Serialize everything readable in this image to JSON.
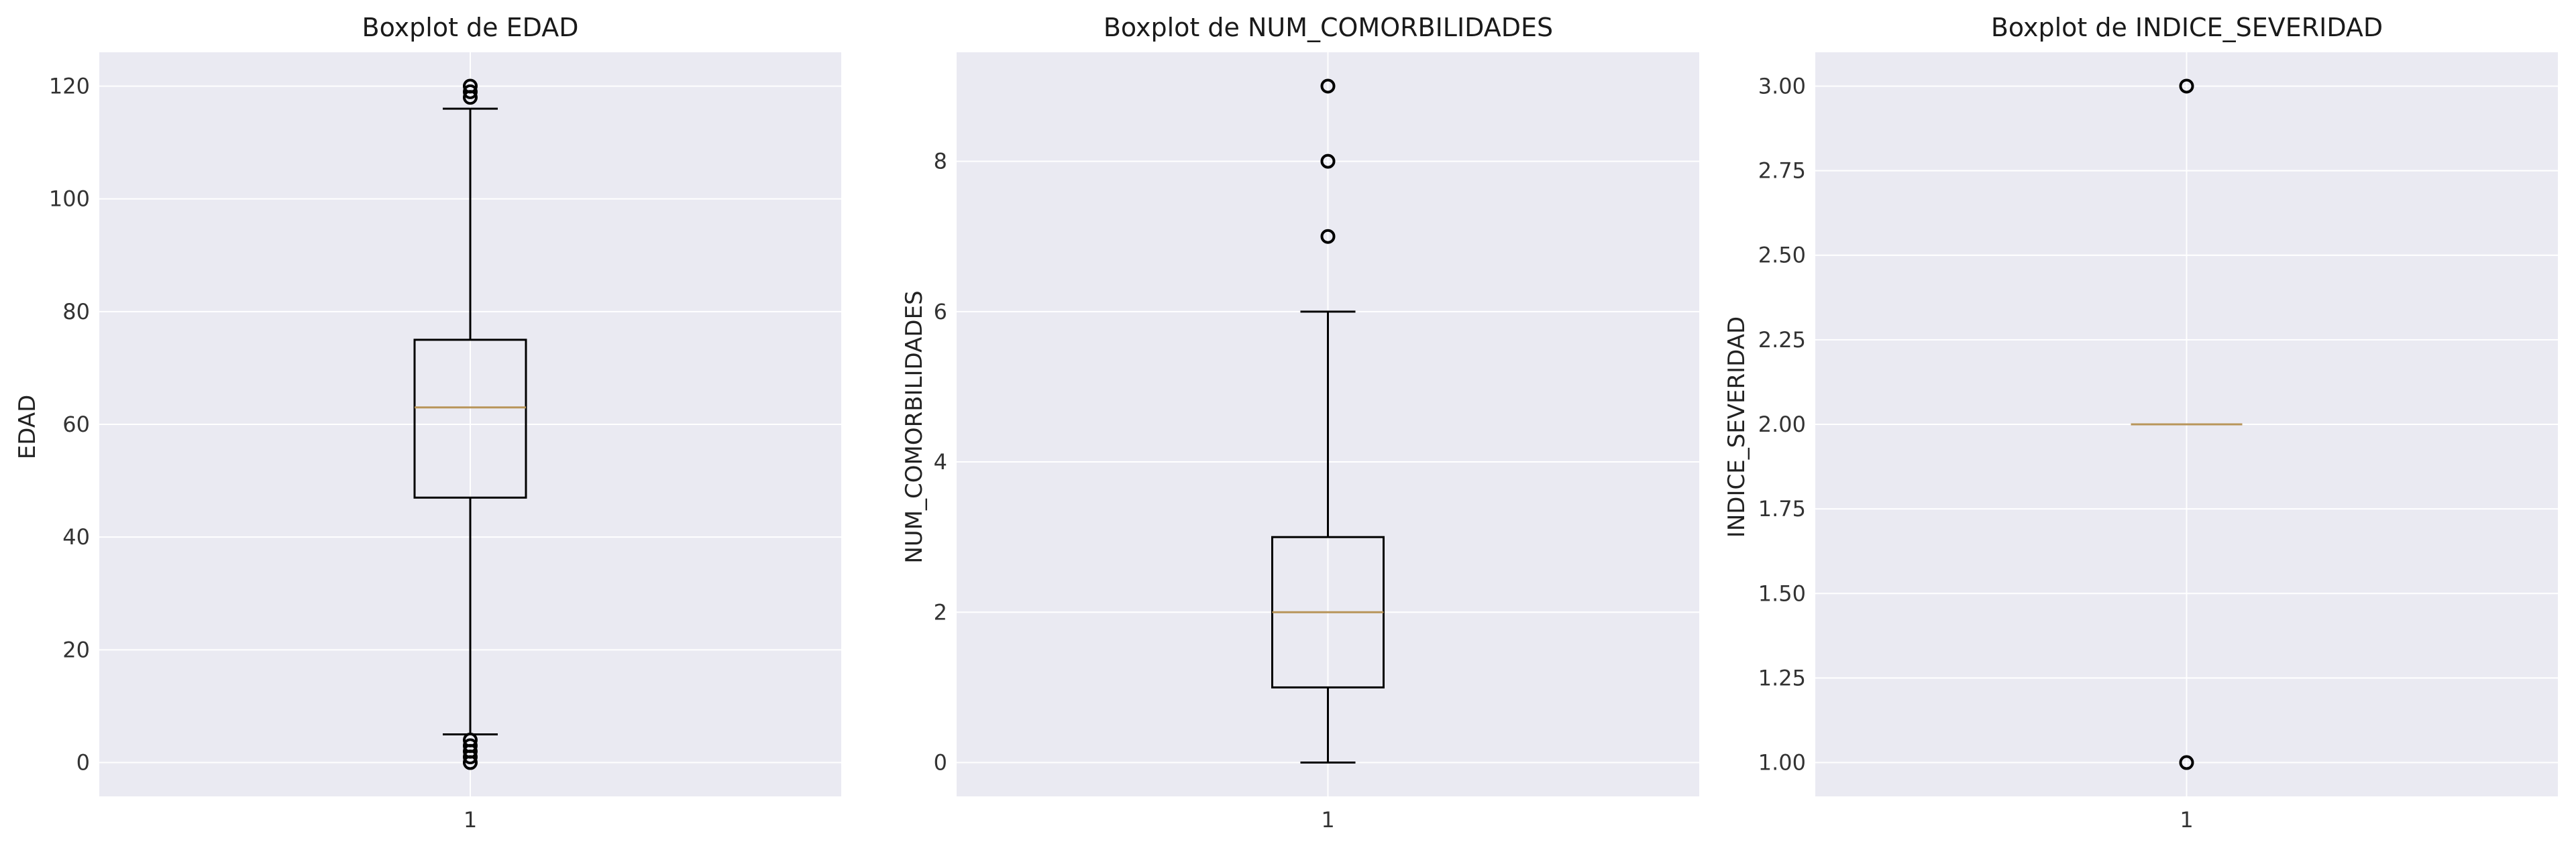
{
  "chart_data": [
    {
      "type": "boxplot",
      "title": "Boxplot de EDAD",
      "xlabel": "",
      "ylabel": "EDAD",
      "categories": [
        "1"
      ],
      "ylim": [
        -6,
        126
      ],
      "yticks": [
        0,
        20,
        40,
        60,
        80,
        100,
        120
      ],
      "ytick_labels": [
        "0",
        "20",
        "40",
        "60",
        "80",
        "100",
        "120"
      ],
      "grid": true,
      "box": {
        "whisker_low": 5,
        "q1": 47,
        "median": 63,
        "q3": 75,
        "whisker_high": 116
      },
      "outliers": [
        0,
        1,
        2,
        3,
        4,
        118,
        119,
        120
      ]
    },
    {
      "type": "boxplot",
      "title": "Boxplot de NUM_COMORBILIDADES",
      "xlabel": "",
      "ylabel": "NUM_COMORBILIDADES",
      "categories": [
        "1"
      ],
      "ylim": [
        -0.45,
        9.45
      ],
      "yticks": [
        0,
        2,
        4,
        6,
        8
      ],
      "ytick_labels": [
        "0",
        "2",
        "4",
        "6",
        "8"
      ],
      "grid": true,
      "box": {
        "whisker_low": 0,
        "q1": 1,
        "median": 2,
        "q3": 3,
        "whisker_high": 6
      },
      "outliers": [
        7,
        8,
        9
      ]
    },
    {
      "type": "boxplot",
      "title": "Boxplot de INDICE_SEVERIDAD",
      "xlabel": "",
      "ylabel": "INDICE_SEVERIDAD",
      "categories": [
        "1"
      ],
      "ylim": [
        0.9,
        3.1
      ],
      "yticks": [
        1.0,
        1.25,
        1.5,
        1.75,
        2.0,
        2.25,
        2.5,
        2.75,
        3.0
      ],
      "ytick_labels": [
        "1.00",
        "1.25",
        "1.50",
        "1.75",
        "2.00",
        "2.25",
        "2.50",
        "2.75",
        "3.00"
      ],
      "grid": true,
      "box": {
        "whisker_low": 2,
        "q1": 2,
        "median": 2,
        "q3": 2,
        "whisker_high": 2
      },
      "outliers": [
        1,
        3
      ]
    }
  ],
  "colors": {
    "background": "#eaeaf2",
    "grid": "#ffffff",
    "box": "#000000",
    "median": "#b8955a"
  }
}
